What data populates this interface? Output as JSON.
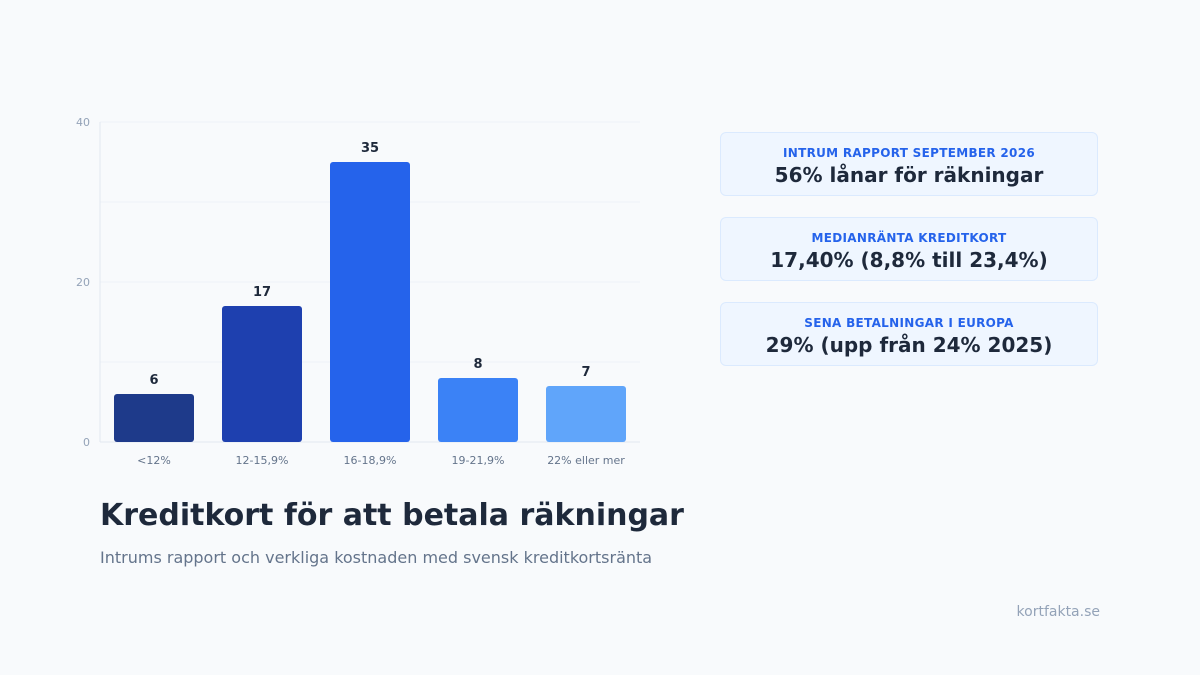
{
  "chart_data": {
    "type": "bar",
    "categories": [
      "<12%",
      "12-15,9%",
      "16-18,9%",
      "19-21,9%",
      "22% eller mer"
    ],
    "values": [
      6,
      17,
      35,
      8,
      7
    ],
    "bar_colors": [
      "#1e3a8a",
      "#1e40af",
      "#2563eb",
      "#3b82f6",
      "#60a5fa"
    ],
    "yticks": [
      0,
      20,
      40
    ],
    "ylim": [
      0,
      40
    ],
    "grid": true,
    "data_labels": true
  },
  "title": "Kreditkort för att betala räkningar",
  "subtitle": "Intrums rapport och verkliga kostnaden med svensk kreditkortsränta",
  "source": "kortfakta.se",
  "stats": [
    {
      "label": "INTRUM RAPPORT SEPTEMBER 2026",
      "value": "56% lånar för räkningar"
    },
    {
      "label": "MEDIANRÄNTA KREDITKORT",
      "value": "17,40% (8,8% till 23,4%)"
    },
    {
      "label": "SENA BETALNINGAR I EUROPA",
      "value": "29% (upp från 24% 2025)"
    }
  ],
  "colors": {
    "accent": "#2563eb",
    "text_dark": "#1e293b",
    "text_muted": "#64748b",
    "axis_text": "#94a3b8",
    "card_bg": "#eff6ff"
  }
}
